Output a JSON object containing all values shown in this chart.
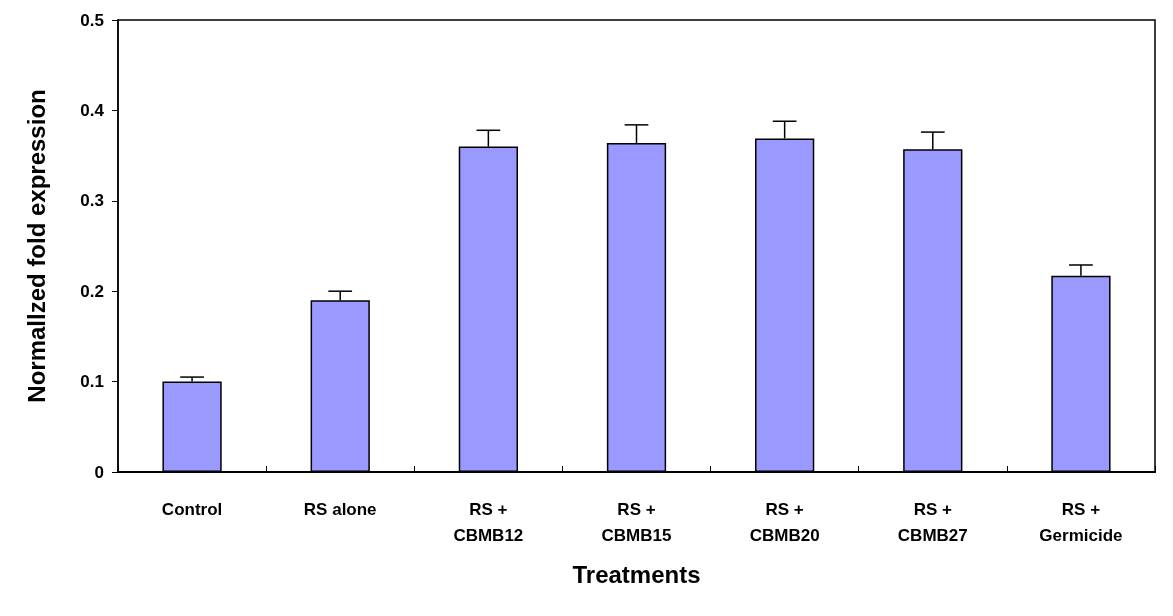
{
  "chart_data": {
    "type": "bar",
    "xlabel": "Treatments",
    "ylabel": "Normallzed fold expression",
    "categories": [
      "Control",
      "RS alone",
      "RS +\nCBMB12",
      "RS +\nCBMB15",
      "RS +\nCBMB20",
      "RS +\nCBMB27",
      "RS +\nGermicide"
    ],
    "values": [
      0.1,
      0.19,
      0.36,
      0.364,
      0.369,
      0.357,
      0.217
    ],
    "errors": [
      [
        0.1,
        0.105
      ],
      [
        0.19,
        0.2
      ],
      [
        0.36,
        0.378
      ],
      [
        0.364,
        0.384
      ],
      [
        0.369,
        0.388
      ],
      [
        0.357,
        0.376
      ],
      [
        0.217,
        0.229
      ]
    ],
    "color": "#9999ff",
    "ylim": [
      0,
      0.5
    ],
    "yticks": [
      0,
      0.1,
      0.2,
      0.3,
      0.4,
      0.5
    ],
    "grid": false
  }
}
